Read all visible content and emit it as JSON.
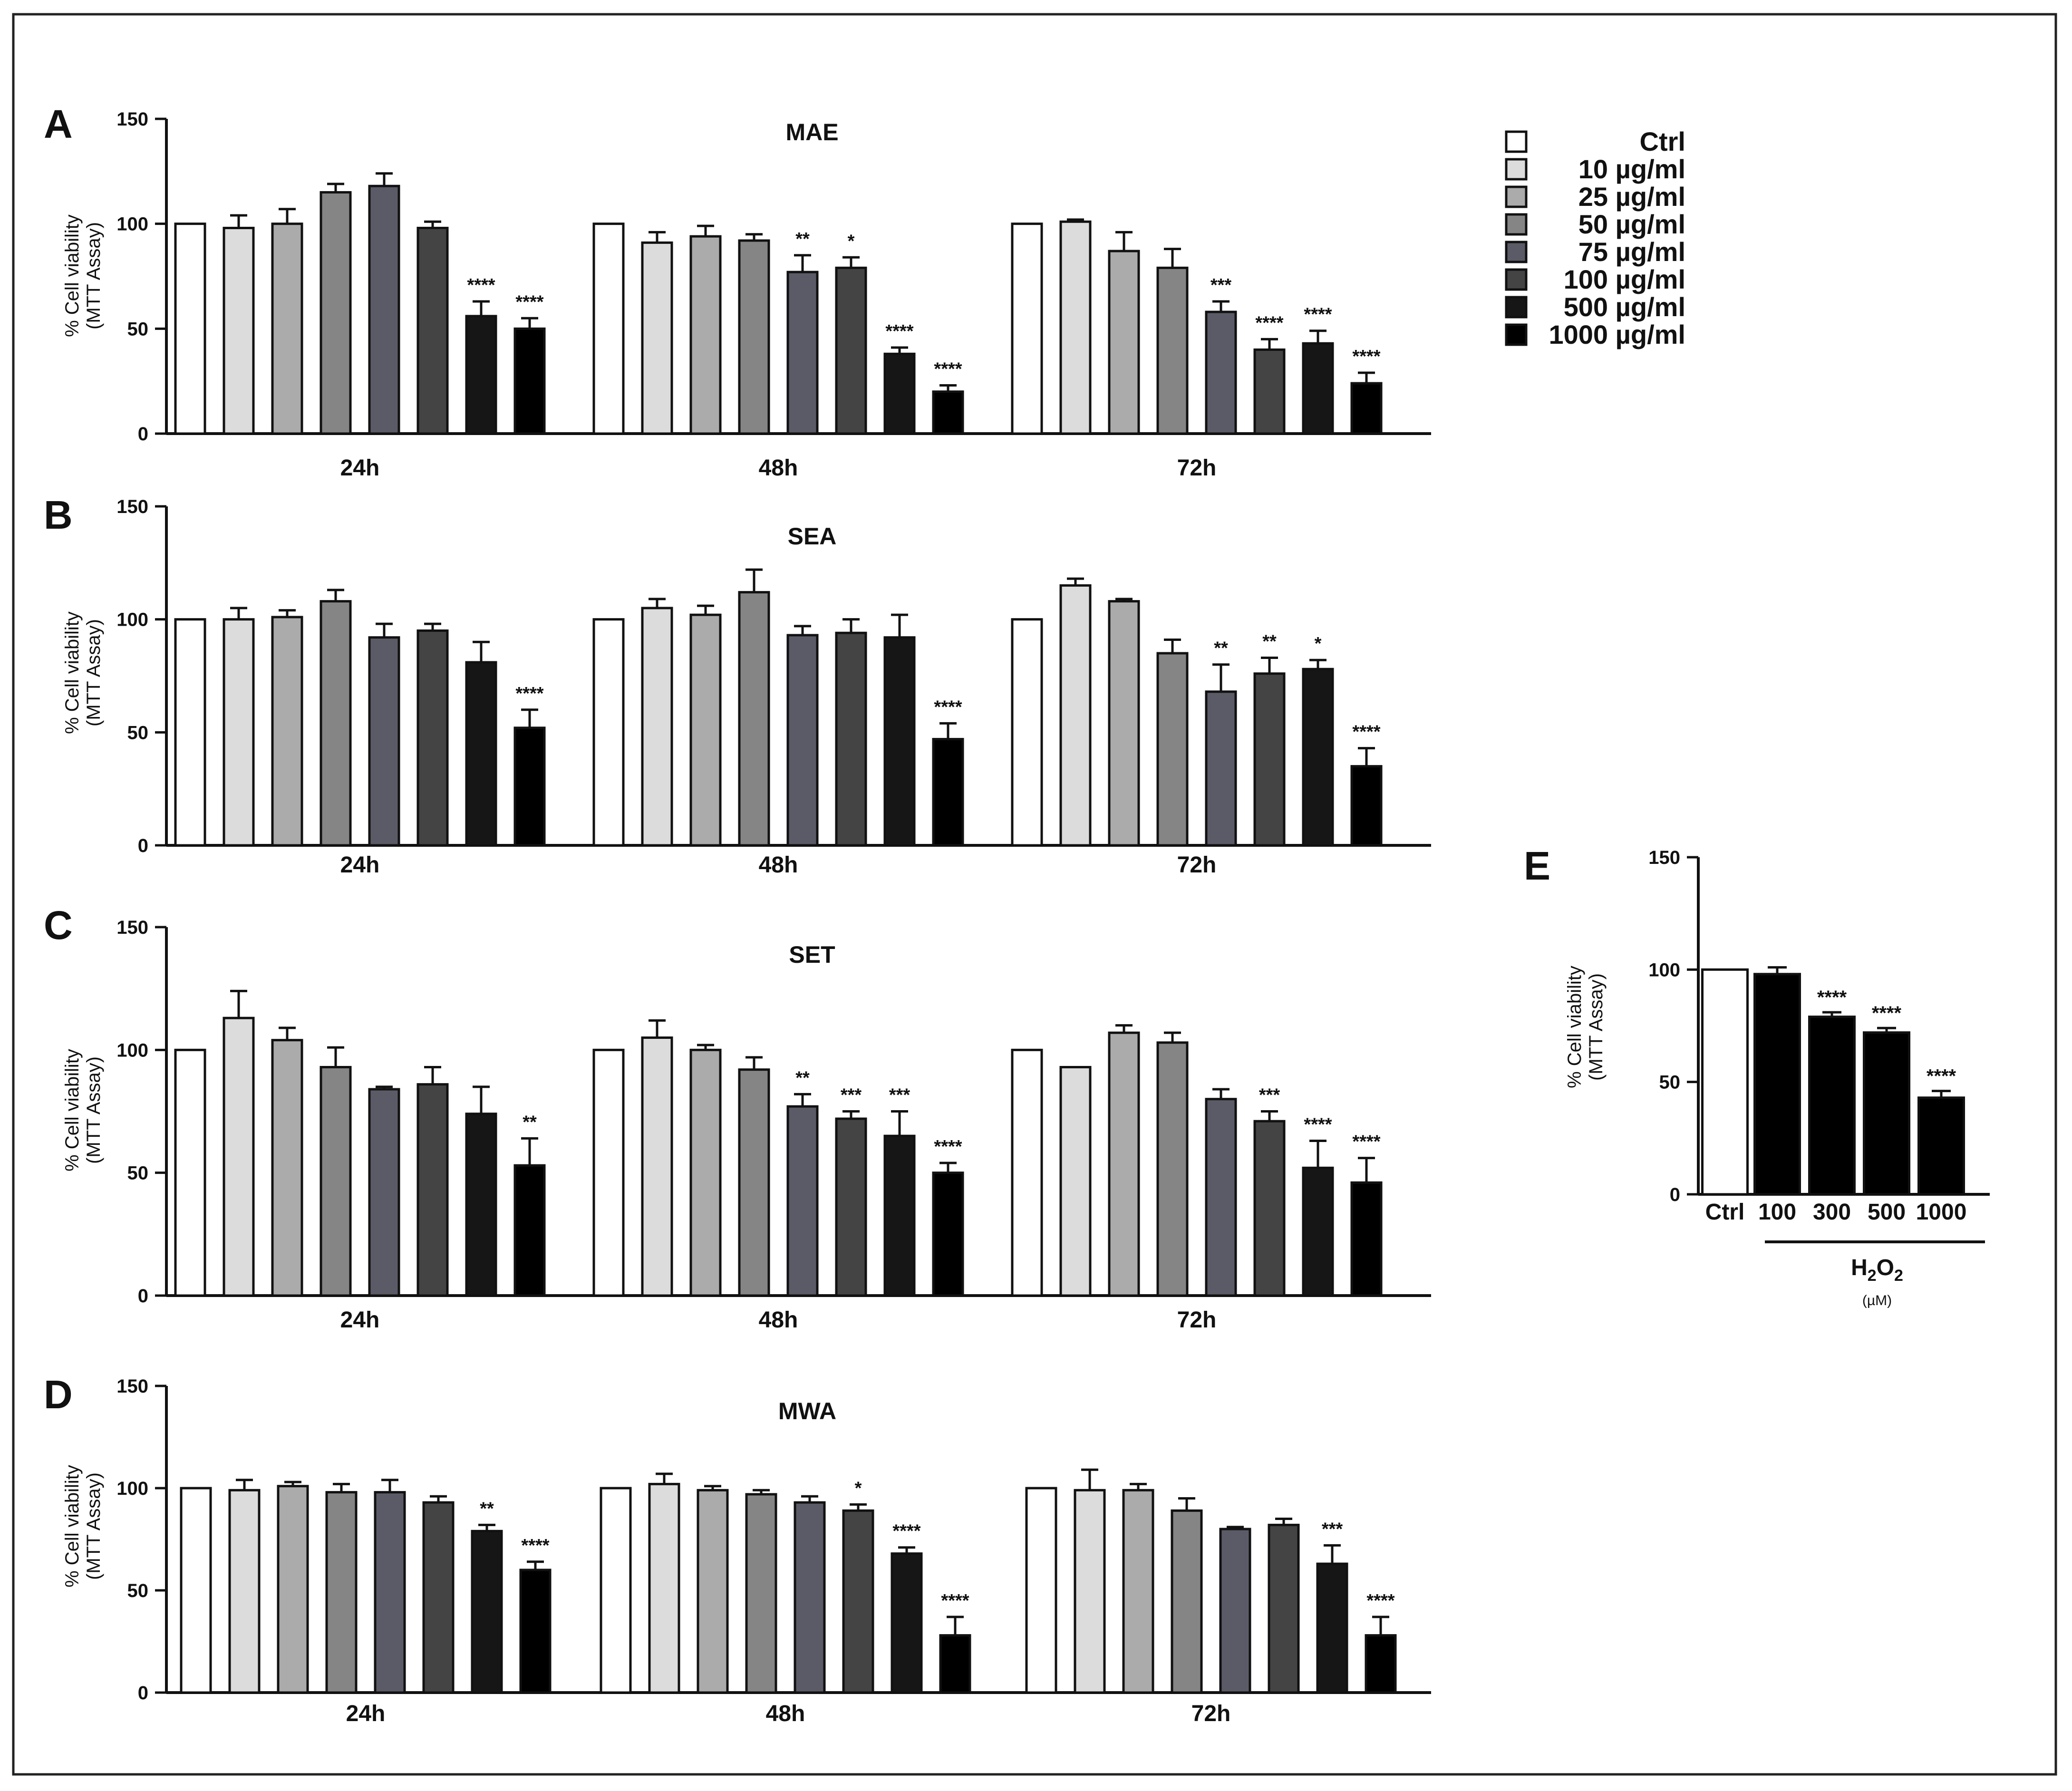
{
  "chart_data": [
    {
      "panel": "A",
      "type": "bar",
      "title": "MAE",
      "ylabel": [
        "% Cell viability",
        "(MTT Assay)"
      ],
      "ylim": [
        0,
        150
      ],
      "yticks": [
        "0",
        "50",
        "100",
        "150"
      ],
      "groups": [
        "24h",
        "48h",
        "72h"
      ],
      "series": [
        "Ctrl",
        "10 µg/ml",
        "25 µg/ml",
        "50 µg/ml",
        "75 µg/ml",
        "100 µg/ml",
        "500 µg/ml",
        "1000 µg/ml"
      ],
      "values": [
        [
          100,
          98,
          100,
          115,
          118,
          98,
          56,
          50
        ],
        [
          100,
          91,
          94,
          92,
          77,
          79,
          38,
          20
        ],
        [
          100,
          101,
          87,
          79,
          58,
          40,
          43,
          24
        ]
      ],
      "errors": [
        [
          0,
          6,
          7,
          4,
          6,
          3,
          7,
          5
        ],
        [
          0,
          5,
          5,
          3,
          8,
          5,
          3,
          3
        ],
        [
          0,
          1,
          9,
          9,
          5,
          5,
          6,
          5
        ]
      ],
      "significance": [
        [
          "",
          "",
          "",
          "",
          "",
          "",
          "****",
          "****"
        ],
        [
          "",
          "",
          "",
          "",
          "**",
          "*",
          "****",
          "****"
        ],
        [
          "",
          "",
          "",
          "",
          "***",
          "****",
          "****",
          "****"
        ]
      ]
    },
    {
      "panel": "B",
      "type": "bar",
      "title": "SEA",
      "ylabel": [
        "% Cell viability",
        "(MTT Assay)"
      ],
      "ylim": [
        0,
        150
      ],
      "yticks": [
        "0",
        "50",
        "100",
        "150"
      ],
      "groups": [
        "24h",
        "48h",
        "72h"
      ],
      "series": [
        "Ctrl",
        "10 µg/ml",
        "25 µg/ml",
        "50 µg/ml",
        "75 µg/ml",
        "100 µg/ml",
        "500 µg/ml",
        "1000 µg/ml"
      ],
      "values": [
        [
          100,
          100,
          101,
          108,
          92,
          95,
          81,
          52
        ],
        [
          100,
          105,
          102,
          112,
          93,
          94,
          92,
          47
        ],
        [
          100,
          115,
          108,
          85,
          68,
          76,
          78,
          35
        ]
      ],
      "errors": [
        [
          0,
          5,
          3,
          5,
          6,
          3,
          9,
          8
        ],
        [
          0,
          4,
          4,
          10,
          4,
          6,
          10,
          7
        ],
        [
          0,
          3,
          1,
          6,
          12,
          7,
          4,
          8
        ]
      ],
      "significance": [
        [
          "",
          "",
          "",
          "",
          "",
          "",
          "",
          "****"
        ],
        [
          "",
          "",
          "",
          "",
          "",
          "",
          "",
          "****"
        ],
        [
          "",
          "",
          "",
          "",
          "**",
          "**",
          "*",
          "****"
        ]
      ]
    },
    {
      "panel": "C",
      "type": "bar",
      "title": "SET",
      "ylabel": [
        "% Cell viability",
        "(MTT Assay)"
      ],
      "ylim": [
        0,
        150
      ],
      "yticks": [
        "0",
        "50",
        "100",
        "150"
      ],
      "groups": [
        "24h",
        "48h",
        "72h"
      ],
      "series": [
        "Ctrl",
        "10 µg/ml",
        "25 µg/ml",
        "50 µg/ml",
        "75 µg/ml",
        "100 µg/ml",
        "500 µg/ml",
        "1000 µg/ml"
      ],
      "values": [
        [
          100,
          113,
          104,
          93,
          84,
          86,
          74,
          53
        ],
        [
          100,
          105,
          100,
          92,
          77,
          72,
          65,
          50
        ],
        [
          100,
          93,
          107,
          103,
          80,
          71,
          52,
          46
        ]
      ],
      "errors": [
        [
          0,
          11,
          5,
          8,
          1,
          7,
          11,
          11
        ],
        [
          0,
          7,
          2,
          5,
          5,
          3,
          10,
          4
        ],
        [
          0,
          0,
          3,
          4,
          4,
          4,
          11,
          10
        ]
      ],
      "significance": [
        [
          "",
          "",
          "",
          "",
          "",
          "",
          "",
          "**"
        ],
        [
          "",
          "",
          "",
          "",
          "**",
          "***",
          "***",
          "****"
        ],
        [
          "",
          "",
          "",
          "",
          "",
          "***",
          "****",
          "****"
        ]
      ]
    },
    {
      "panel": "D",
      "type": "bar",
      "title": "MWA",
      "ylabel": [
        "% Cell viability",
        "(MTT Assay)"
      ],
      "ylim": [
        0,
        150
      ],
      "yticks": [
        "0",
        "50",
        "100",
        "150"
      ],
      "groups": [
        "24h",
        "48h",
        "72h"
      ],
      "series": [
        "Ctrl",
        "10 µg/ml",
        "25 µg/ml",
        "50 µg/ml",
        "75 µg/ml",
        "100 µg/ml",
        "500 µg/ml",
        "1000 µg/ml"
      ],
      "values": [
        [
          100,
          99,
          101,
          98,
          98,
          93,
          79,
          60
        ],
        [
          100,
          102,
          99,
          97,
          93,
          89,
          68,
          28
        ],
        [
          100,
          99,
          99,
          89,
          80,
          82,
          63,
          28
        ]
      ],
      "errors": [
        [
          0,
          5,
          2,
          4,
          6,
          3,
          3,
          4
        ],
        [
          0,
          5,
          2,
          2,
          3,
          3,
          3,
          9
        ],
        [
          0,
          10,
          3,
          6,
          1,
          3,
          9,
          9
        ]
      ],
      "significance": [
        [
          "",
          "",
          "",
          "",
          "",
          "",
          "**",
          "****"
        ],
        [
          "",
          "",
          "",
          "",
          "",
          "*",
          "****",
          "****"
        ],
        [
          "",
          "",
          "",
          "",
          "",
          "",
          "***",
          "****"
        ]
      ]
    },
    {
      "panel": "E",
      "type": "bar",
      "ylabel": [
        "% Cell viability",
        "(MTT Assay)"
      ],
      "ylim": [
        0,
        150
      ],
      "yticks": [
        "0",
        "50",
        "100",
        "150"
      ],
      "categories": [
        "Ctrl",
        "100",
        "300",
        "500",
        "1000"
      ],
      "values": [
        100,
        98,
        79,
        72,
        43
      ],
      "errors": [
        0,
        3,
        2,
        2,
        3
      ],
      "significance": [
        "",
        "",
        "****",
        "****",
        "****"
      ],
      "xlabel": {
        "main": "H",
        "sub1": "2",
        "mid": "O",
        "sub2": "2",
        "unit": "(µM)"
      }
    }
  ],
  "legend": {
    "items": [
      "Ctrl",
      "10 µg/ml",
      "25 µg/ml",
      "50 µg/ml",
      "75 µg/ml",
      "100 µg/ml",
      "500 µg/ml",
      "1000 µg/ml"
    ],
    "colors": [
      "#ffffff",
      "#dcdcdc",
      "#ababab",
      "#858585",
      "#5b5b68",
      "#444444",
      "#161616",
      "#000000"
    ]
  }
}
